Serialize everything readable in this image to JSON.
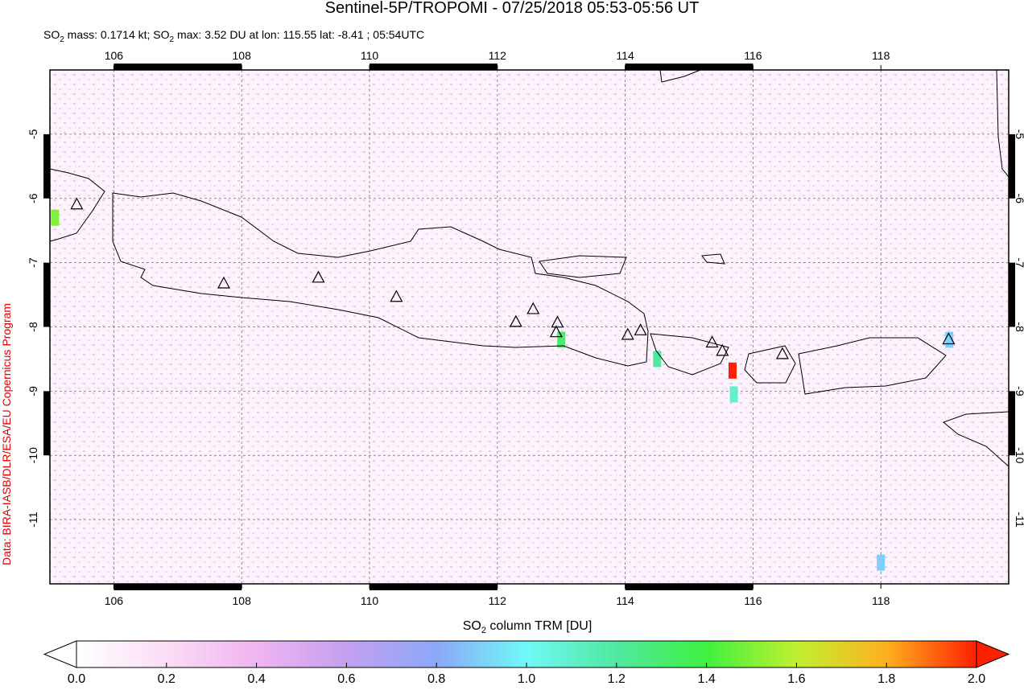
{
  "chart_data": {
    "type": "map",
    "title": "Sentinel-5P/TROPOMI - 07/25/2018 05:53-05:56 UT",
    "subtitle": [
      "SO",
      "2",
      " mass: 0.1714 kt; SO",
      "2",
      " max: 3.52 DU at lon: 115.55 lat: -8.41 ; 05:54UTC"
    ],
    "side_note": "Data: BIRA-IASB/DLR/ESA/EU Copernicus Program",
    "xlim": [
      105,
      120
    ],
    "ylim": [
      -12,
      -4
    ],
    "xticks": [
      106,
      108,
      110,
      112,
      114,
      116,
      118
    ],
    "yticks": [
      -5,
      -6,
      -7,
      -8,
      -9,
      -10,
      -11
    ],
    "grid": true,
    "volcanoes": {
      "lon": [
        105.42,
        107.72,
        109.2,
        110.42,
        112.29,
        112.56,
        112.94,
        112.92,
        114.04,
        114.24,
        115.36,
        115.52,
        116.46,
        119.06
      ],
      "lat": [
        -6.1,
        -7.33,
        -7.24,
        -7.54,
        -7.93,
        -7.73,
        -7.94,
        -8.09,
        -8.13,
        -8.06,
        -8.25,
        -8.38,
        -8.43,
        -8.2
      ]
    },
    "hotspots": {
      "lon": [
        115.68,
        105.08,
        113.0,
        114.5,
        115.7,
        118.0,
        119.07
      ],
      "lat": [
        -8.68,
        -6.3,
        -8.2,
        -8.5,
        -9.05,
        -11.67,
        -8.2
      ],
      "values": [
        2.0,
        1.5,
        1.3,
        1.2,
        1.1,
        0.9,
        0.9
      ]
    },
    "colorbar_label": [
      "SO",
      "2",
      " column TRM [DU]"
    ],
    "clim": [
      0,
      2
    ],
    "colorbar_ticks": [
      {
        "value": 0,
        "label": "0.0"
      },
      {
        "value": 0.2,
        "label": "0.2"
      },
      {
        "value": 0.4,
        "label": "0.4"
      },
      {
        "value": 0.6,
        "label": "0.6"
      },
      {
        "value": 0.8,
        "label": "0.8"
      },
      {
        "value": 1,
        "label": "1.0"
      },
      {
        "value": 1.2,
        "label": "1.2"
      },
      {
        "value": 1.4,
        "label": "1.4"
      },
      {
        "value": 1.6,
        "label": "1.6"
      },
      {
        "value": 1.8,
        "label": "1.8"
      },
      {
        "value": 2,
        "label": "2.0"
      }
    ],
    "colormap": [
      "#ffffff",
      "#fadcf5",
      "#f0b4f0",
      "#c4a0f0",
      "#8ca8f8",
      "#70f8f8",
      "#50e8a0",
      "#40f040",
      "#c0f030",
      "#ffb020",
      "#ff2000"
    ]
  }
}
